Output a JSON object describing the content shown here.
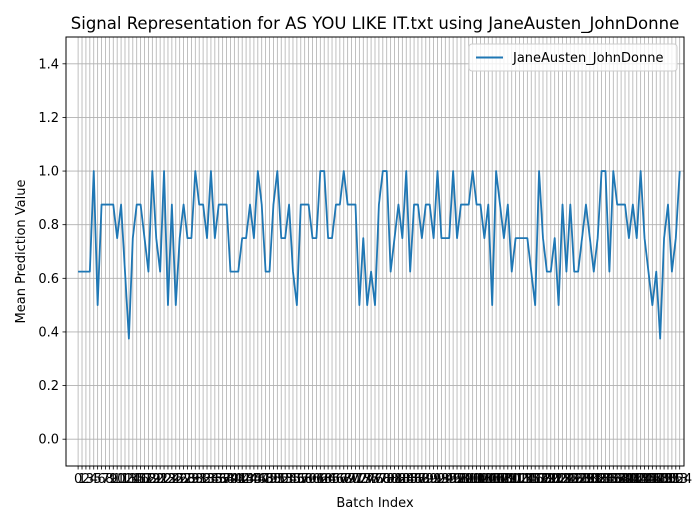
{
  "chart_data": {
    "type": "line",
    "title": "Signal Representation for AS YOU LIKE IT.txt using JaneAusten_JohnDonne",
    "xlabel": "Batch Index",
    "ylabel": "Mean Prediction Value",
    "xlim": [
      -3.1,
      155.1
    ],
    "ylim": [
      -0.1,
      1.5
    ],
    "yticks": [
      0.0,
      0.2,
      0.4,
      0.6,
      0.8,
      1.0,
      1.2,
      1.4
    ],
    "xticks_step": 1,
    "grid": true,
    "legend_position": "top-right",
    "series": [
      {
        "name": "JaneAusten_JohnDonne",
        "color": "#1f77b4",
        "values": [
          0.625,
          0.625,
          0.625,
          0.625,
          1.0,
          0.5,
          0.875,
          0.875,
          0.875,
          0.875,
          0.75,
          0.875,
          0.625,
          0.375,
          0.75,
          0.875,
          0.875,
          0.75,
          0.625,
          1.0,
          0.75,
          0.625,
          1.0,
          0.5,
          0.875,
          0.5,
          0.75,
          0.875,
          0.75,
          0.75,
          1.0,
          0.875,
          0.875,
          0.75,
          1.0,
          0.75,
          0.875,
          0.875,
          0.875,
          0.625,
          0.625,
          0.625,
          0.75,
          0.75,
          0.875,
          0.75,
          1.0,
          0.875,
          0.625,
          0.625,
          0.875,
          1.0,
          0.75,
          0.75,
          0.875,
          0.625,
          0.5,
          0.875,
          0.875,
          0.875,
          0.75,
          0.75,
          1.0,
          1.0,
          0.75,
          0.75,
          0.875,
          0.875,
          1.0,
          0.875,
          0.875,
          0.875,
          0.5,
          0.75,
          0.5,
          0.625,
          0.5,
          0.875,
          1.0,
          1.0,
          0.625,
          0.75,
          0.875,
          0.75,
          1.0,
          0.625,
          0.875,
          0.875,
          0.75,
          0.875,
          0.875,
          0.75,
          1.0,
          0.75,
          0.75,
          0.75,
          1.0,
          0.75,
          0.875,
          0.875,
          0.875,
          1.0,
          0.875,
          0.875,
          0.75,
          0.875,
          0.5,
          1.0,
          0.875,
          0.75,
          0.875,
          0.625,
          0.75,
          0.75,
          0.75,
          0.75,
          0.625,
          0.5,
          1.0,
          0.75,
          0.625,
          0.625,
          0.75,
          0.5,
          0.875,
          0.625,
          0.875,
          0.625,
          0.625,
          0.75,
          0.875,
          0.75,
          0.625,
          0.75,
          1.0,
          1.0,
          0.625,
          1.0,
          0.875,
          0.875,
          0.875,
          0.75,
          0.875,
          0.75,
          1.0,
          0.75,
          0.625,
          0.5,
          0.625,
          0.375,
          0.75,
          0.875,
          0.625,
          0.75,
          1.0
        ]
      }
    ]
  }
}
